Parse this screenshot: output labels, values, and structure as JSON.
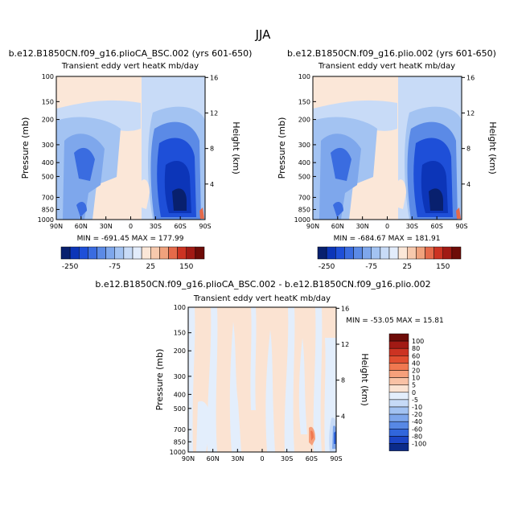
{
  "page_title": "JJA",
  "panels": {
    "left": {
      "title": "b.e12.B1850CN.f09_g16.plioCA_BSC.002 (yrs 601-650)",
      "subtitle": "Transient eddy vert heatK mb/day",
      "stats": "MIN = -691.45   MAX = 177.99"
    },
    "right": {
      "title": "b.e12.B1850CN.f09_g16.plio.002 (yrs 601-650)",
      "subtitle": "Transient eddy vert heatK mb/day",
      "stats": "MIN = -684.67   MAX = 181.91"
    },
    "diff": {
      "title": "b.e12.B1850CN.f09_g16.plioCA_BSC.002 - b.e12.B1850CN.f09_g16.plio.002",
      "subtitle": "Transient eddy vert heatK mb/day",
      "stats": "MIN = -53.05   MAX =  15.81"
    }
  },
  "colorbar_top": {
    "labels": [
      "-250",
      "-75",
      "25",
      "150"
    ],
    "colors": [
      "#08206e",
      "#0c35b8",
      "#1e4fd8",
      "#3a6ce0",
      "#5b8ae6",
      "#7ea7ec",
      "#a3c3f2",
      "#c8dbf7",
      "#e2ecfb",
      "#fbe7d8",
      "#f7c9ad",
      "#f0a27d",
      "#e56a4a",
      "#cc3322",
      "#a11a14",
      "#6e0c08"
    ]
  },
  "colorbar_diff": {
    "labels": [
      "100",
      "80",
      "60",
      "40",
      "20",
      "10",
      "5",
      "0",
      "-5",
      "-10",
      "-20",
      "-40",
      "-60",
      "-80",
      "-100"
    ],
    "colors": [
      "#6e0c08",
      "#a11a14",
      "#cc3322",
      "#e14e30",
      "#f07850",
      "#f6a07b",
      "#f9c2a5",
      "#fbe3d2",
      "#e3eefc",
      "#c6daf7",
      "#a2c2f2",
      "#7da6ec",
      "#5788e5",
      "#3166dc",
      "#1b45c6",
      "#0b2b8a"
    ]
  },
  "chart_data": [
    {
      "type": "heatmap",
      "title": "b.e12.B1850CN.f09_g16.plioCA_BSC.002 (yrs 601-650)",
      "xlabel": "",
      "ylabel": "Pressure (mb)",
      "y2label": "Height (km)",
      "x_ticks": [
        "90N",
        "60N",
        "30N",
        "0",
        "30S",
        "60S",
        "90S"
      ],
      "y_ticks": [
        "100",
        "150",
        "200",
        "300",
        "400",
        "500",
        "700",
        "850",
        "1000"
      ],
      "y2_ticks": [
        "16",
        "12",
        "8",
        "4"
      ],
      "min": -691.45,
      "max": 177.99
    },
    {
      "type": "heatmap",
      "title": "b.e12.B1850CN.f09_g16.plio.002 (yrs 601-650)",
      "xlabel": "",
      "ylabel": "Pressure (mb)",
      "y2label": "Height (km)",
      "x_ticks": [
        "90N",
        "60N",
        "30N",
        "0",
        "30S",
        "60S",
        "90S"
      ],
      "y_ticks": [
        "100",
        "150",
        "200",
        "300",
        "400",
        "500",
        "700",
        "850",
        "1000"
      ],
      "y2_ticks": [
        "16",
        "12",
        "8",
        "4"
      ],
      "min": -684.67,
      "max": 181.91
    },
    {
      "type": "heatmap",
      "title": "b.e12.B1850CN.f09_g16.plioCA_BSC.002 - b.e12.B1850CN.f09_g16.plio.002",
      "xlabel": "",
      "ylabel": "Pressure (mb)",
      "y2label": "Height (km)",
      "x_ticks": [
        "90N",
        "60N",
        "30N",
        "0",
        "30S",
        "60S",
        "90S"
      ],
      "y_ticks": [
        "100",
        "150",
        "200",
        "300",
        "400",
        "500",
        "700",
        "850",
        "1000"
      ],
      "y2_ticks": [
        "16",
        "12",
        "8",
        "4"
      ],
      "min": -53.05,
      "max": 15.81
    }
  ]
}
